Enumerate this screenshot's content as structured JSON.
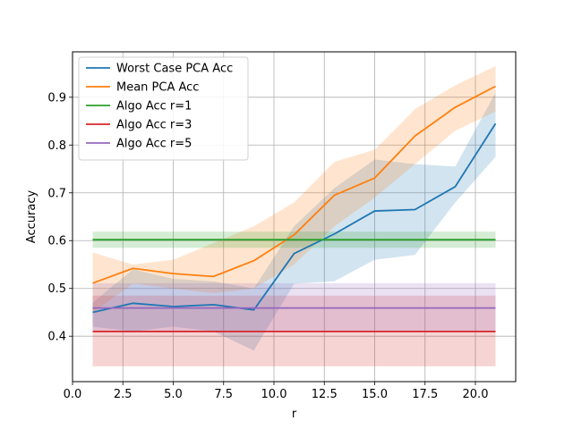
{
  "chart_data": {
    "type": "line",
    "title": "",
    "xlabel": "r",
    "ylabel": "Accuracy",
    "xlim": [
      0.0,
      22.0
    ],
    "ylim": [
      0.305,
      0.995
    ],
    "xticks": [
      0.0,
      2.5,
      5.0,
      7.5,
      10.0,
      12.5,
      15.0,
      17.5,
      20.0
    ],
    "xtick_labels": [
      "0.0",
      "2.5",
      "5.0",
      "7.5",
      "10.0",
      "12.5",
      "15.0",
      "17.5",
      "20.0"
    ],
    "yticks": [
      0.4,
      0.5,
      0.6,
      0.7,
      0.8,
      0.9
    ],
    "ytick_labels": [
      "0.4",
      "0.5",
      "0.6",
      "0.7",
      "0.8",
      "0.9"
    ],
    "grid": true,
    "legend_position": "upper-left",
    "x": [
      1,
      3,
      5,
      7,
      9,
      11,
      13,
      15,
      17,
      19,
      21
    ],
    "series": [
      {
        "name": "Worst Case PCA Acc",
        "color": "#1f77b4",
        "values": [
          0.45,
          0.469,
          0.462,
          0.466,
          0.455,
          0.573,
          0.614,
          0.662,
          0.665,
          0.713,
          0.845
        ],
        "band_lower": [
          0.42,
          0.41,
          0.42,
          0.41,
          0.37,
          0.51,
          0.515,
          0.56,
          0.57,
          0.68,
          0.775
        ],
        "band_upper": [
          0.47,
          0.54,
          0.52,
          0.515,
          0.5,
          0.63,
          0.71,
          0.77,
          0.76,
          0.755,
          0.91
        ]
      },
      {
        "name": "Mean PCA Acc",
        "color": "#ff7f0e",
        "values": [
          0.511,
          0.542,
          0.531,
          0.525,
          0.558,
          0.612,
          0.695,
          0.731,
          0.819,
          0.879,
          0.923
        ],
        "band_lower": [
          0.45,
          0.51,
          0.5,
          0.49,
          0.5,
          0.55,
          0.63,
          0.69,
          0.76,
          0.83,
          0.87
        ],
        "band_upper": [
          0.575,
          0.55,
          0.56,
          0.595,
          0.63,
          0.68,
          0.765,
          0.79,
          0.875,
          0.925,
          0.965
        ]
      },
      {
        "name": "Algo Acc r=1",
        "color": "#2ca02c",
        "values": [
          0.602,
          0.602,
          0.602,
          0.602,
          0.602,
          0.602,
          0.602,
          0.602,
          0.602,
          0.602,
          0.602
        ],
        "band_lower": [
          0.585,
          0.585,
          0.585,
          0.585,
          0.585,
          0.585,
          0.585,
          0.585,
          0.585,
          0.585,
          0.585
        ],
        "band_upper": [
          0.619,
          0.619,
          0.619,
          0.619,
          0.619,
          0.619,
          0.619,
          0.619,
          0.619,
          0.619,
          0.619
        ]
      },
      {
        "name": "Algo Acc r=3",
        "color": "#d62728",
        "values": [
          0.41,
          0.41,
          0.41,
          0.41,
          0.41,
          0.41,
          0.41,
          0.41,
          0.41,
          0.41,
          0.41
        ],
        "band_lower": [
          0.337,
          0.337,
          0.337,
          0.337,
          0.337,
          0.337,
          0.337,
          0.337,
          0.337,
          0.337,
          0.337
        ],
        "band_upper": [
          0.485,
          0.485,
          0.485,
          0.485,
          0.485,
          0.485,
          0.485,
          0.485,
          0.485,
          0.485,
          0.485
        ]
      },
      {
        "name": "Algo Acc r=5",
        "color": "#9467bd",
        "values": [
          0.459,
          0.459,
          0.459,
          0.459,
          0.459,
          0.459,
          0.459,
          0.459,
          0.459,
          0.459,
          0.459
        ],
        "band_lower": [
          0.408,
          0.408,
          0.408,
          0.408,
          0.408,
          0.408,
          0.408,
          0.408,
          0.408,
          0.408,
          0.408
        ],
        "band_upper": [
          0.511,
          0.511,
          0.511,
          0.511,
          0.511,
          0.511,
          0.511,
          0.511,
          0.511,
          0.511,
          0.511
        ]
      }
    ]
  }
}
